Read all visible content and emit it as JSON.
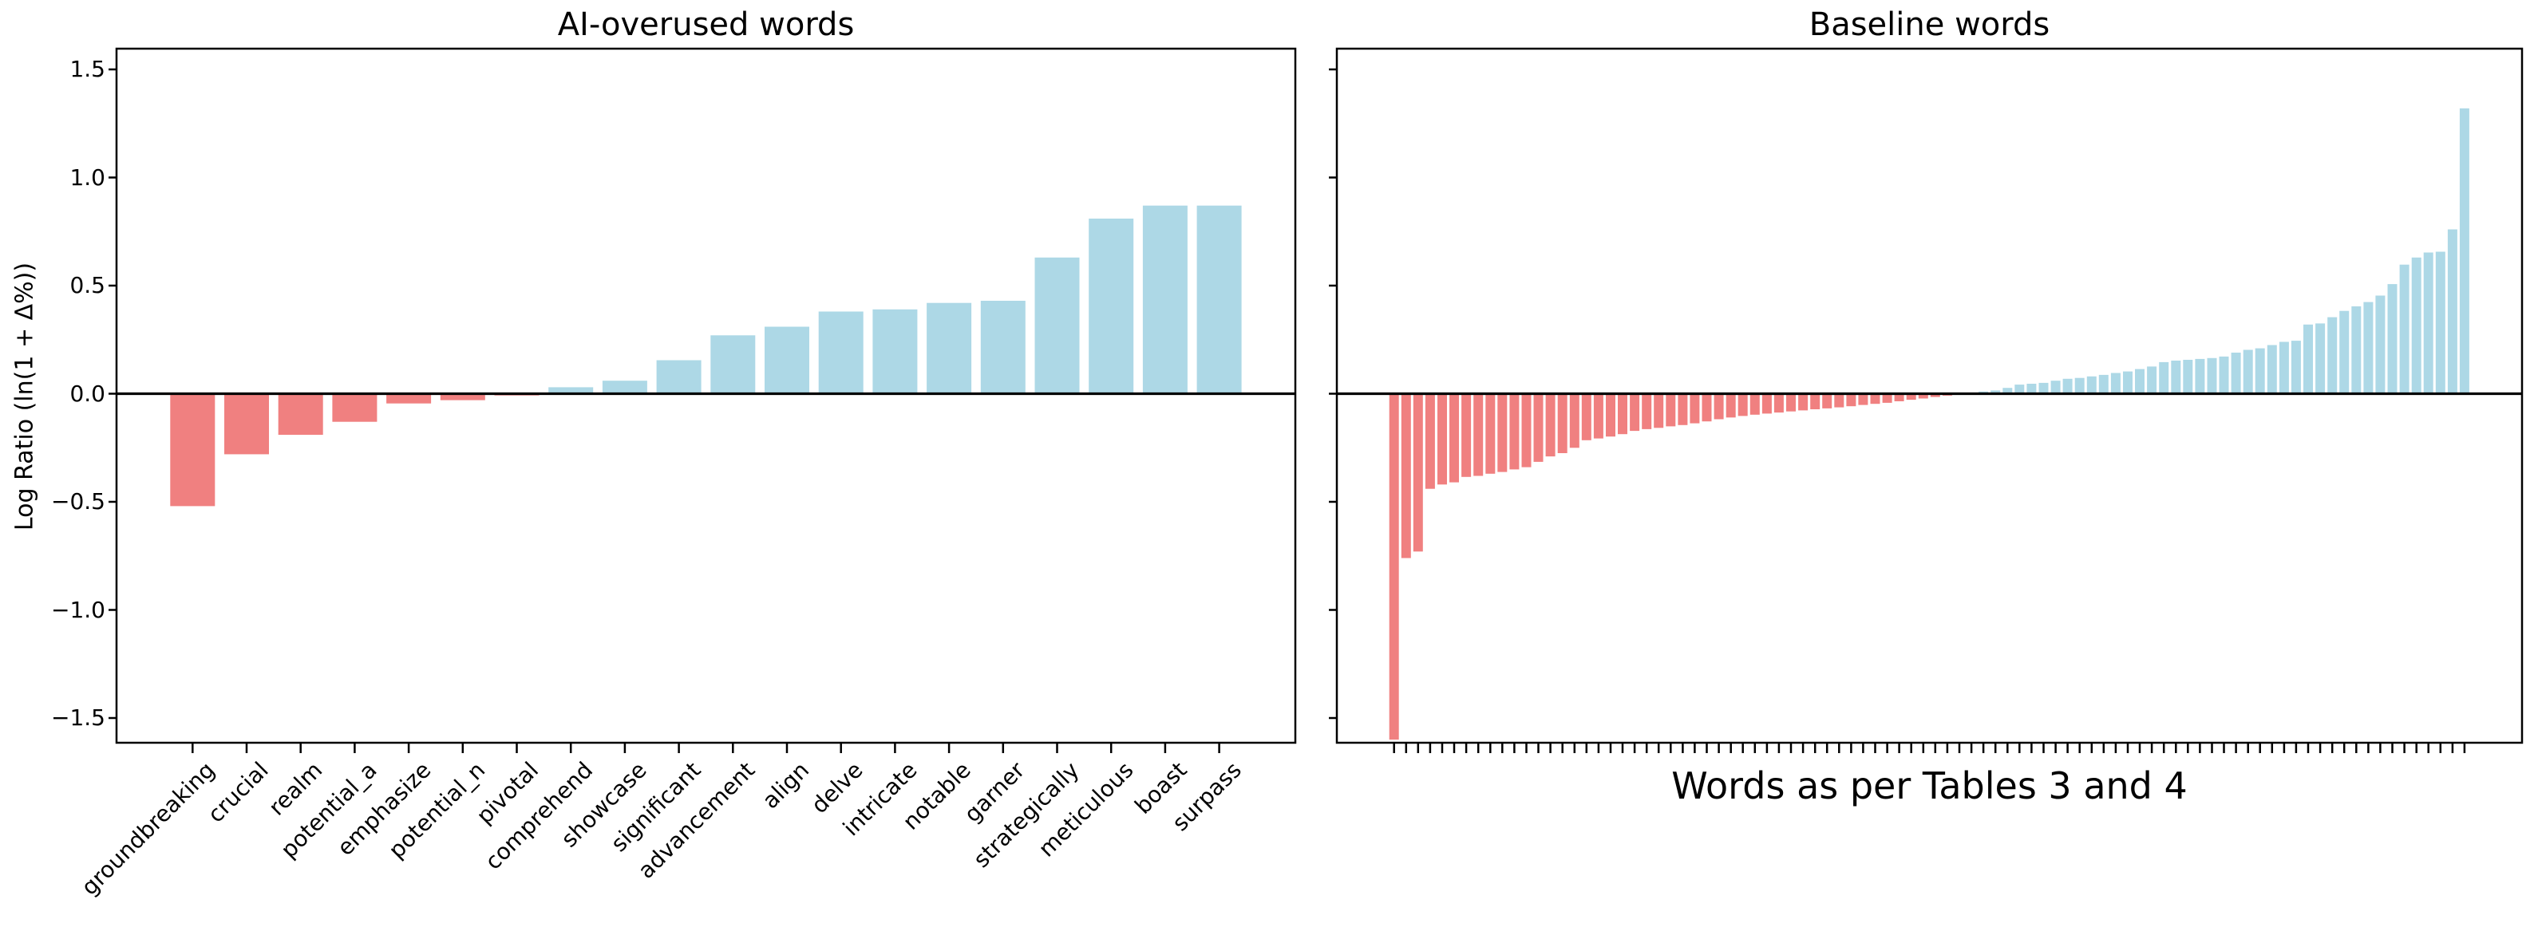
{
  "figure": {
    "background": "#ffffff",
    "ylabel": "Log Ratio (ln(1 + Δ%))",
    "yticks": {
      "values": [
        1.5,
        1.0,
        0.5,
        0.0,
        -0.5,
        -1.0,
        -1.5
      ],
      "labels": [
        "1.5",
        "1.0",
        "0.5",
        "0.0",
        "−0.5",
        "−1.0",
        "−1.5"
      ]
    }
  },
  "chart_data": [
    {
      "type": "bar",
      "title": "AI-overused words",
      "ylabel": "Log Ratio (ln(1 + Δ%))",
      "xlabel": "",
      "ylim": [
        -1.62,
        1.62
      ],
      "grid": false,
      "zero_line": true,
      "legend": false,
      "bar_colors": {
        "positive": "#add8e6",
        "negative": "#f08080"
      },
      "categories": [
        "groundbreaking",
        "crucial",
        "realm",
        "potential_a",
        "emphasize",
        "potential_n",
        "pivotal",
        "comprehend",
        "showcase",
        "significant",
        "advancement",
        "align",
        "delve",
        "intricate",
        "notable",
        "garner",
        "strategically",
        "meticulous",
        "boast",
        "surpass"
      ],
      "values": [
        -0.52,
        -0.28,
        -0.19,
        -0.13,
        -0.045,
        -0.03,
        -0.008,
        0.03,
        0.06,
        0.155,
        0.27,
        0.31,
        0.38,
        0.39,
        0.42,
        0.43,
        0.63,
        0.81,
        0.87,
        0.87
      ]
    },
    {
      "type": "bar",
      "title": "Baseline words",
      "ylabel": "",
      "xlabel": "Words as per Tables 3 and 4",
      "ylim": [
        -1.62,
        1.62
      ],
      "grid": false,
      "zero_line": true,
      "legend": false,
      "categories_labeled": false,
      "bar_colors": {
        "positive": "#add8e6",
        "negative": "#f08080"
      },
      "values": [
        -1.6,
        -0.76,
        -0.73,
        -0.44,
        -0.42,
        -0.41,
        -0.385,
        -0.38,
        -0.37,
        -0.362,
        -0.35,
        -0.34,
        -0.315,
        -0.29,
        -0.275,
        -0.25,
        -0.215,
        -0.207,
        -0.198,
        -0.187,
        -0.172,
        -0.164,
        -0.158,
        -0.151,
        -0.145,
        -0.137,
        -0.128,
        -0.118,
        -0.11,
        -0.103,
        -0.097,
        -0.092,
        -0.087,
        -0.082,
        -0.077,
        -0.072,
        -0.068,
        -0.063,
        -0.058,
        -0.052,
        -0.047,
        -0.042,
        -0.035,
        -0.028,
        -0.022,
        -0.015,
        -0.009,
        -0.004,
        0.003,
        0.01,
        0.015,
        0.027,
        0.042,
        0.046,
        0.05,
        0.06,
        0.069,
        0.073,
        0.08,
        0.087,
        0.096,
        0.103,
        0.114,
        0.126,
        0.146,
        0.153,
        0.157,
        0.161,
        0.165,
        0.172,
        0.19,
        0.203,
        0.21,
        0.225,
        0.24,
        0.245,
        0.32,
        0.325,
        0.354,
        0.383,
        0.404,
        0.424,
        0.454,
        0.507,
        0.597,
        0.63,
        0.653,
        0.657,
        0.76,
        1.32
      ]
    }
  ]
}
